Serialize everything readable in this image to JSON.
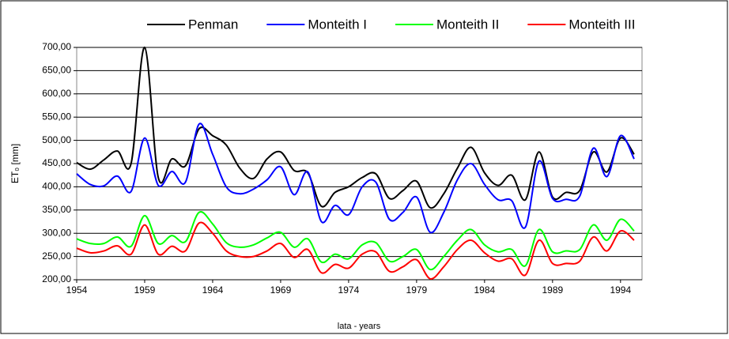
{
  "chart_data": {
    "type": "line",
    "y_label": "ET₀ [mm]",
    "x_label": "lata - years",
    "x": [
      1954,
      1955,
      1956,
      1957,
      1958,
      1959,
      1960,
      1961,
      1962,
      1963,
      1964,
      1965,
      1966,
      1967,
      1968,
      1969,
      1970,
      1971,
      1972,
      1973,
      1974,
      1975,
      1976,
      1977,
      1978,
      1979,
      1980,
      1981,
      1982,
      1983,
      1984,
      1985,
      1986,
      1987,
      1988,
      1989,
      1990,
      1991,
      1992,
      1993,
      1994,
      1995
    ],
    "series": [
      {
        "name": "Penman",
        "color": "#000000",
        "values": [
          452,
          438,
          458,
          477,
          450,
          700,
          420,
          460,
          445,
          525,
          510,
          490,
          440,
          418,
          460,
          475,
          435,
          430,
          358,
          388,
          400,
          420,
          428,
          375,
          392,
          412,
          355,
          385,
          440,
          485,
          430,
          403,
          425,
          372,
          475,
          378,
          388,
          392,
          475,
          432,
          505,
          470
        ]
      },
      {
        "name": "Monteith I",
        "color": "#0000ff",
        "values": [
          428,
          405,
          402,
          423,
          390,
          505,
          403,
          433,
          410,
          535,
          470,
          400,
          385,
          395,
          415,
          443,
          383,
          432,
          325,
          360,
          340,
          400,
          410,
          330,
          345,
          378,
          302,
          345,
          415,
          450,
          405,
          372,
          370,
          313,
          455,
          375,
          373,
          380,
          483,
          422,
          510,
          460
        ]
      },
      {
        "name": "Monteith II",
        "color": "#00ff00",
        "values": [
          288,
          278,
          278,
          292,
          272,
          338,
          278,
          295,
          282,
          345,
          320,
          280,
          270,
          275,
          290,
          302,
          270,
          288,
          238,
          255,
          245,
          275,
          280,
          240,
          250,
          265,
          222,
          250,
          285,
          308,
          275,
          260,
          265,
          230,
          308,
          260,
          262,
          265,
          318,
          285,
          330,
          305
        ]
      },
      {
        "name": "Monteith III",
        "color": "#ff0000",
        "values": [
          268,
          258,
          262,
          273,
          255,
          318,
          255,
          272,
          262,
          322,
          300,
          262,
          250,
          250,
          262,
          278,
          248,
          265,
          215,
          233,
          225,
          255,
          260,
          218,
          228,
          243,
          202,
          228,
          265,
          285,
          258,
          240,
          245,
          210,
          285,
          235,
          235,
          240,
          292,
          262,
          305,
          285
        ]
      }
    ],
    "xlim": [
      1954,
      1995
    ],
    "xticks": [
      1954,
      1959,
      1964,
      1969,
      1974,
      1979,
      1984,
      1989,
      1994
    ],
    "ylim": [
      200,
      700
    ],
    "yticks": [
      {
        "value": 200,
        "label": "200,00"
      },
      {
        "value": 250,
        "label": "250,00"
      },
      {
        "value": 300,
        "label": "300,00"
      },
      {
        "value": 350,
        "label": "350,00"
      },
      {
        "value": 400,
        "label": "400,00"
      },
      {
        "value": 450,
        "label": "450,00"
      },
      {
        "value": 500,
        "label": "500,00"
      },
      {
        "value": 550,
        "label": "550,00"
      },
      {
        "value": 600,
        "label": "600,00"
      },
      {
        "value": 650,
        "label": "650,00"
      },
      {
        "value": 700,
        "label": "700,00"
      }
    ],
    "grid": true,
    "legend": "top"
  }
}
